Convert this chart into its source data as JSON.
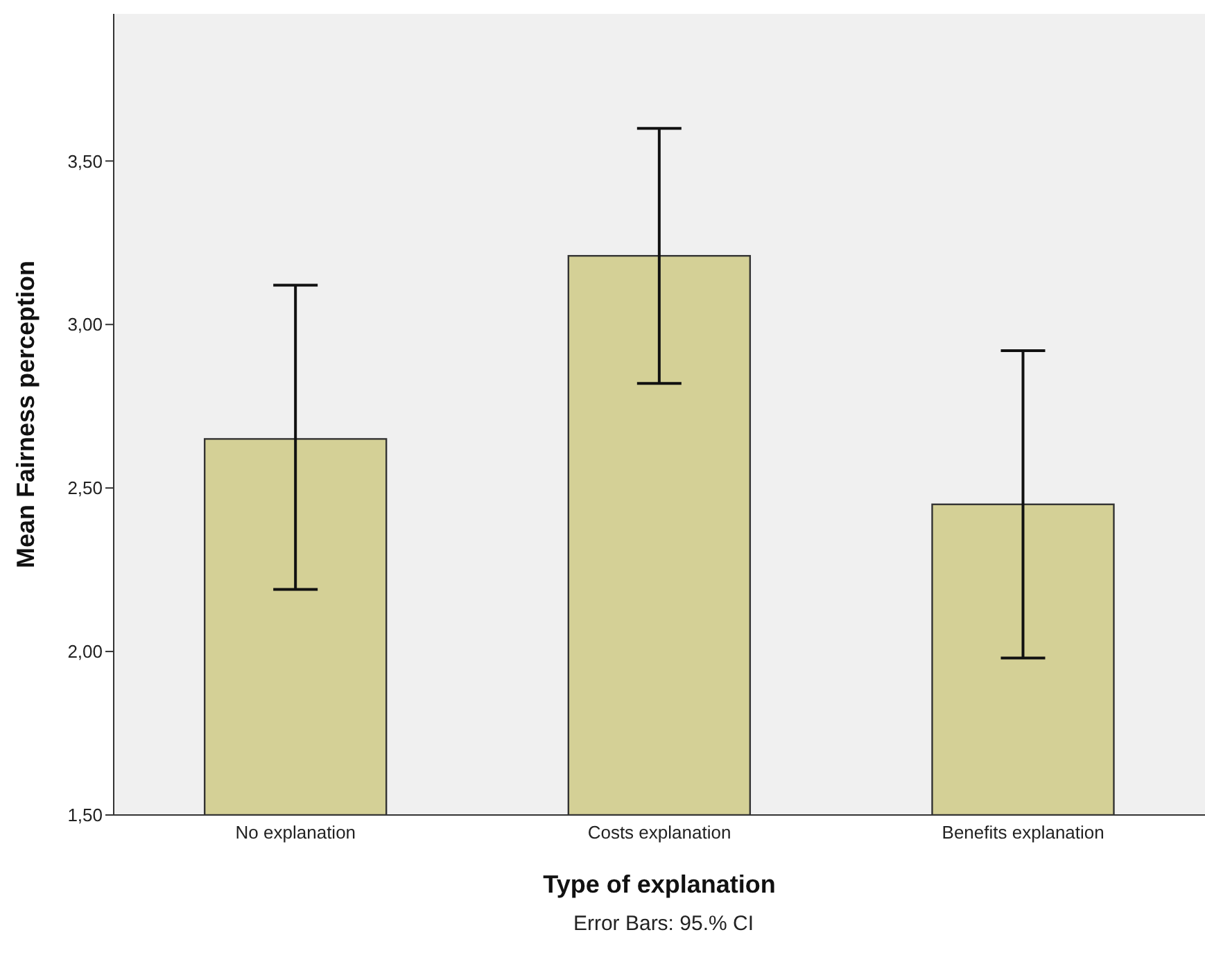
{
  "chart_data": {
    "type": "bar",
    "xlabel": "Type of explanation",
    "ylabel": "Mean Fairness perception",
    "categories": [
      "No explanation",
      "Costs explanation",
      "Benefits explanation"
    ],
    "values": [
      2.65,
      3.21,
      2.45
    ],
    "errors": [
      [
        2.19,
        3.12
      ],
      [
        2.82,
        3.6
      ],
      [
        1.98,
        2.92
      ]
    ],
    "color": "#d4d096",
    "ylim": [
      1.5,
      3.95
    ],
    "yticks": [
      {
        "value": 1.5,
        "label": "1,50"
      },
      {
        "value": 2.0,
        "label": "2,00"
      },
      {
        "value": 2.5,
        "label": "2,50"
      },
      {
        "value": 3.0,
        "label": "3,00"
      },
      {
        "value": 3.5,
        "label": "3,50"
      }
    ],
    "grid": false,
    "annotations": [
      "Error Bars: 95.% CI"
    ]
  }
}
